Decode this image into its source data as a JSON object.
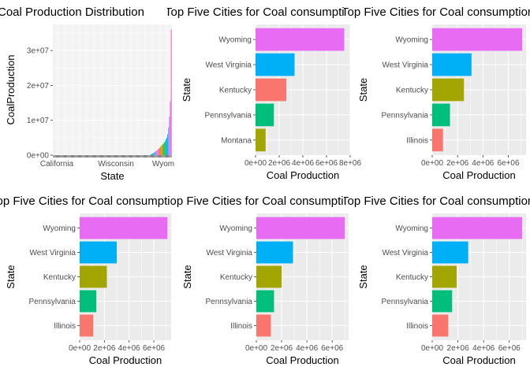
{
  "chart_data": [
    {
      "type": "bar",
      "title": "Coal Production Distribution",
      "xlabel": "State",
      "ylabel": "CoalProduction",
      "x_tick_labels": [
        "California",
        "Wisconsin",
        "Wyom"
      ],
      "y_tick_labels": [
        "0e+00",
        "1e+07",
        "2e+07",
        "3e+07"
      ],
      "ylim": [
        0,
        37500000
      ],
      "colors": [
        "#F8766D",
        "#E58700",
        "#C99800",
        "#A3A500",
        "#6BB100",
        "#00BA38",
        "#00BF7D",
        "#00C0AF",
        "#00BCD8",
        "#00B0F6",
        "#619CFF",
        "#B983FF",
        "#E76BF3",
        "#FD61D1",
        "#FF67A4"
      ],
      "values": [
        0,
        0,
        0,
        0,
        0,
        0,
        0,
        0,
        0,
        0,
        0,
        0,
        0,
        0,
        0,
        0,
        0,
        0,
        0,
        0,
        0,
        0,
        0,
        0,
        0,
        0,
        0,
        0,
        0,
        0,
        0,
        0,
        0,
        0,
        0,
        0,
        0,
        0,
        0,
        0,
        0,
        0,
        0,
        0,
        0,
        0,
        0,
        0,
        0,
        0,
        0,
        0,
        0,
        0,
        0,
        0,
        0,
        0,
        0,
        0,
        0,
        0,
        0,
        0,
        0,
        0,
        0,
        0,
        0,
        0,
        0,
        0,
        0,
        0,
        0,
        0,
        0,
        0,
        0,
        0,
        0,
        0,
        0,
        0,
        0,
        0,
        0,
        0,
        0,
        0,
        0,
        0,
        0,
        0,
        0,
        0,
        0,
        0,
        0,
        0,
        0,
        0,
        0,
        0,
        0,
        0,
        0,
        0,
        0,
        0,
        200000,
        300000,
        450000,
        600000,
        800000,
        1000000,
        1200000,
        1400000,
        1700000,
        1900000,
        2100000,
        2400000,
        2700000,
        3000000,
        3200000,
        3600000,
        4000000,
        4500000,
        5000000,
        6000000,
        8000000,
        11000000,
        15500000,
        36000000
      ]
    },
    {
      "type": "bar",
      "orientation": "horizontal",
      "title": "Top Five Cities for Coal consumption",
      "xlabel": "Coal Production",
      "ylabel": "State",
      "categories": [
        "Wyoming",
        "West Virginia",
        "Kentucky",
        "Pennsylvania",
        "Montana"
      ],
      "values": [
        7500000,
        3300000,
        2600000,
        1550000,
        850000
      ],
      "colors": [
        "#E76BF3",
        "#00B0F6",
        "#F8766D",
        "#00BF7D",
        "#A3A500"
      ],
      "x_tick_labels": [
        "0e+00",
        "2e+06",
        "4e+06",
        "6e+06",
        "8e+06"
      ],
      "xlim": [
        0,
        8000000
      ]
    },
    {
      "type": "bar",
      "orientation": "horizontal",
      "title": "Top Five Cities for Coal consumption",
      "xlabel": "Coal Production",
      "ylabel": "State",
      "categories": [
        "Wyoming",
        "West Virginia",
        "Kentucky",
        "Pennsylvania",
        "Illinois"
      ],
      "values": [
        7100000,
        3100000,
        2500000,
        1400000,
        850000
      ],
      "colors": [
        "#E76BF3",
        "#00B0F6",
        "#A3A500",
        "#00BF7D",
        "#F8766D"
      ],
      "x_tick_labels": [
        "0e+00",
        "2e+06",
        "4e+06",
        "6e+06"
      ],
      "xlim": [
        0,
        7400000
      ]
    },
    {
      "type": "bar",
      "orientation": "horizontal",
      "title": "Top Five Cities for Coal consumption",
      "xlabel": "Coal Production",
      "ylabel": "State",
      "categories": [
        "Wyoming",
        "West Virginia",
        "Kentucky",
        "Pennsylvania",
        "Illinois"
      ],
      "values": [
        7100000,
        3000000,
        2200000,
        1350000,
        1100000
      ],
      "colors": [
        "#E76BF3",
        "#00B0F6",
        "#A3A500",
        "#00BF7D",
        "#F8766D"
      ],
      "x_tick_labels": [
        "0e+00",
        "2e+06",
        "4e+06",
        "6e+06"
      ],
      "xlim": [
        0,
        7400000
      ]
    },
    {
      "type": "bar",
      "orientation": "horizontal",
      "title": "Top Five Cities for Coal consumption",
      "xlabel": "Coal Production",
      "ylabel": "State",
      "categories": [
        "Wyoming",
        "West Virginia",
        "Kentucky",
        "Pennsylvania",
        "Illinois"
      ],
      "values": [
        7000000,
        2900000,
        2000000,
        1400000,
        1150000
      ],
      "colors": [
        "#E76BF3",
        "#00B0F6",
        "#A3A500",
        "#00BF7D",
        "#F8766D"
      ],
      "x_tick_labels": [
        "0e+00",
        "2e+06",
        "4e+06",
        "6e+06"
      ],
      "xlim": [
        0,
        7300000
      ]
    },
    {
      "type": "bar",
      "orientation": "horizontal",
      "title": "Top Five Cities for Coal consumption",
      "xlabel": "Coal Production",
      "ylabel": "State",
      "categories": [
        "Wyoming",
        "West Virginia",
        "Kentucky",
        "Pennsylvania",
        "Illinois"
      ],
      "values": [
        7000000,
        2800000,
        1900000,
        1550000,
        1250000
      ],
      "colors": [
        "#E76BF3",
        "#00B0F6",
        "#A3A500",
        "#00BF7D",
        "#F8766D"
      ],
      "x_tick_labels": [
        "0e+00",
        "2e+06",
        "4e+06",
        "6e+06"
      ],
      "xlim": [
        0,
        7300000
      ]
    }
  ]
}
